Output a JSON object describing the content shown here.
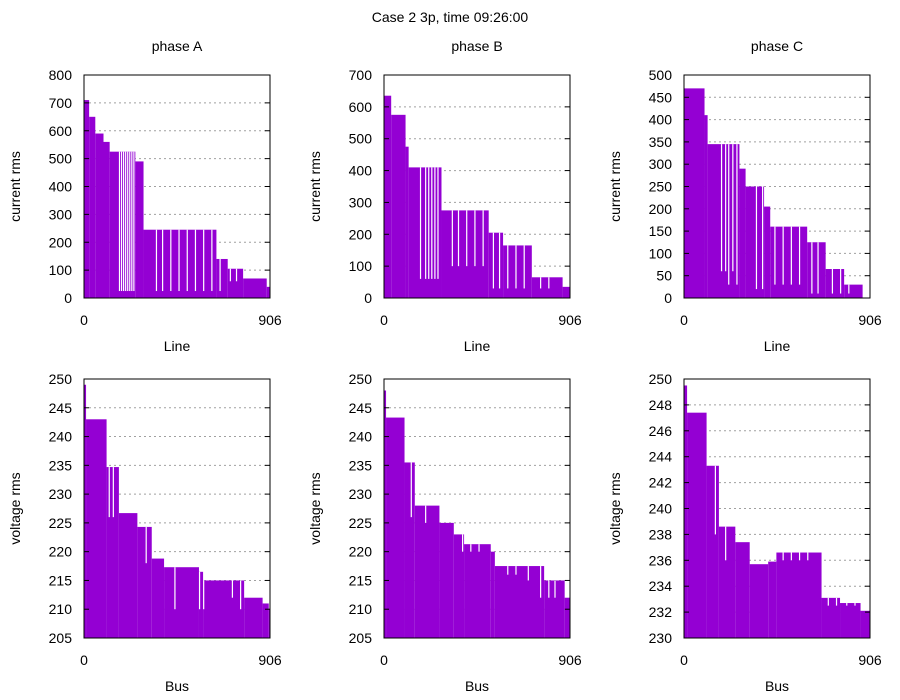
{
  "title": "Case 2 3p, time 09:26:00",
  "colors": {
    "bar": "#9400d3",
    "grid": "#a0a0a0",
    "axis": "#000000"
  },
  "chart_data": [
    {
      "type": "bar",
      "title": "phase A",
      "xlabel": "Line",
      "ylabel": "current rms",
      "xlim": [
        0,
        906
      ],
      "xticks": [
        "0",
        "906"
      ],
      "ylim": [
        0,
        800
      ],
      "yticks": [
        0,
        100,
        200,
        300,
        400,
        500,
        600,
        700,
        800
      ],
      "grid": "horizontal",
      "steps": [
        [
          0,
          710
        ],
        [
          25,
          650
        ],
        [
          55,
          590
        ],
        [
          95,
          560
        ],
        [
          125,
          525
        ],
        [
          250,
          490
        ],
        [
          290,
          245
        ],
        [
          645,
          140
        ],
        [
          700,
          105
        ],
        [
          775,
          70
        ],
        [
          890,
          40
        ]
      ],
      "gaps": [
        [
          170,
          25
        ],
        [
          180,
          25
        ],
        [
          190,
          25
        ],
        [
          200,
          25
        ],
        [
          210,
          25
        ],
        [
          220,
          25
        ],
        [
          230,
          25
        ],
        [
          240,
          25
        ],
        [
          350,
          25
        ],
        [
          380,
          25
        ],
        [
          420,
          25
        ],
        [
          460,
          25
        ],
        [
          500,
          25
        ],
        [
          540,
          25
        ],
        [
          580,
          25
        ],
        [
          620,
          25
        ],
        [
          660,
          25
        ],
        [
          710,
          60
        ],
        [
          740,
          60
        ]
      ]
    },
    {
      "type": "bar",
      "title": "phase B",
      "xlabel": "Line",
      "ylabel": "current rms",
      "xlim": [
        0,
        906
      ],
      "xticks": [
        "0",
        "906"
      ],
      "ylim": [
        0,
        700
      ],
      "yticks": [
        0,
        100,
        200,
        300,
        400,
        500,
        600,
        700
      ],
      "grid": "horizontal",
      "steps": [
        [
          0,
          635
        ],
        [
          35,
          575
        ],
        [
          105,
          475
        ],
        [
          120,
          410
        ],
        [
          280,
          275
        ],
        [
          510,
          205
        ],
        [
          580,
          165
        ],
        [
          720,
          65
        ],
        [
          870,
          35
        ]
      ],
      "gaps": [
        [
          175,
          60
        ],
        [
          200,
          60
        ],
        [
          215,
          60
        ],
        [
          230,
          60
        ],
        [
          245,
          60
        ],
        [
          260,
          60
        ],
        [
          330,
          100
        ],
        [
          360,
          100
        ],
        [
          400,
          100
        ],
        [
          440,
          100
        ],
        [
          480,
          100
        ],
        [
          530,
          30
        ],
        [
          560,
          30
        ],
        [
          600,
          30
        ],
        [
          640,
          30
        ],
        [
          680,
          30
        ],
        [
          760,
          30
        ],
        [
          800,
          30
        ]
      ]
    },
    {
      "type": "bar",
      "title": "phase C",
      "xlabel": "Line",
      "ylabel": "current rms",
      "xlim": [
        0,
        906
      ],
      "xticks": [
        "0",
        "906"
      ],
      "ylim": [
        0,
        500
      ],
      "yticks": [
        0,
        50,
        100,
        150,
        200,
        250,
        300,
        350,
        400,
        450,
        500
      ],
      "grid": "horizontal",
      "steps": [
        [
          0,
          470
        ],
        [
          100,
          410
        ],
        [
          115,
          345
        ],
        [
          270,
          290
        ],
        [
          300,
          250
        ],
        [
          390,
          205
        ],
        [
          420,
          160
        ],
        [
          600,
          125
        ],
        [
          690,
          65
        ],
        [
          780,
          30
        ],
        [
          870,
          0
        ]
      ],
      "gaps": [
        [
          180,
          60
        ],
        [
          200,
          60
        ],
        [
          215,
          30
        ],
        [
          235,
          60
        ],
        [
          255,
          30
        ],
        [
          350,
          20
        ],
        [
          380,
          20
        ],
        [
          440,
          30
        ],
        [
          480,
          30
        ],
        [
          520,
          30
        ],
        [
          560,
          30
        ],
        [
          620,
          10
        ],
        [
          650,
          10
        ],
        [
          720,
          10
        ],
        [
          760,
          10
        ],
        [
          800,
          10
        ]
      ]
    },
    {
      "type": "bar",
      "title": "",
      "xlabel": "Bus",
      "ylabel": "voltage rms",
      "xlim": [
        0,
        906
      ],
      "xticks": [
        "0",
        "906"
      ],
      "ylim": [
        205,
        250
      ],
      "yticks": [
        205,
        210,
        215,
        220,
        225,
        230,
        235,
        240,
        245,
        250
      ],
      "grid": "horizontal",
      "steps": [
        [
          0,
          249
        ],
        [
          10,
          243
        ],
        [
          110,
          234.7
        ],
        [
          170,
          226.7
        ],
        [
          260,
          224.3
        ],
        [
          330,
          218.8
        ],
        [
          390,
          217.3
        ],
        [
          560,
          216.5
        ],
        [
          580,
          215
        ],
        [
          780,
          212
        ],
        [
          870,
          211
        ],
        [
          900,
          210
        ]
      ],
      "gaps": [
        [
          120,
          226
        ],
        [
          140,
          226
        ],
        [
          300,
          218
        ],
        [
          440,
          210
        ],
        [
          560,
          210
        ],
        [
          580,
          210
        ],
        [
          720,
          212
        ],
        [
          760,
          210
        ]
      ]
    },
    {
      "type": "bar",
      "title": "",
      "xlabel": "Bus",
      "ylabel": "voltage rms",
      "xlim": [
        0,
        906
      ],
      "xticks": [
        "0",
        "906"
      ],
      "ylim": [
        205,
        250
      ],
      "yticks": [
        205,
        210,
        215,
        220,
        225,
        230,
        235,
        240,
        245,
        250
      ],
      "grid": "horizontal",
      "steps": [
        [
          0,
          248
        ],
        [
          10,
          243.3
        ],
        [
          100,
          235.5
        ],
        [
          150,
          228
        ],
        [
          270,
          225
        ],
        [
          340,
          223
        ],
        [
          390,
          221.3
        ],
        [
          520,
          220
        ],
        [
          540,
          217.5
        ],
        [
          780,
          215
        ],
        [
          880,
          212
        ]
      ],
      "gaps": [
        [
          130,
          226
        ],
        [
          200,
          225
        ],
        [
          380,
          220
        ],
        [
          420,
          220
        ],
        [
          460,
          220
        ],
        [
          600,
          216
        ],
        [
          640,
          216
        ],
        [
          700,
          215
        ],
        [
          760,
          212
        ],
        [
          800,
          212
        ],
        [
          830,
          212
        ]
      ]
    },
    {
      "type": "bar",
      "title": "",
      "xlabel": "Bus",
      "ylabel": "voltage rms",
      "xlim": [
        0,
        906
      ],
      "xticks": [
        "0",
        "906"
      ],
      "ylim": [
        230,
        250
      ],
      "yticks": [
        230,
        232,
        234,
        236,
        238,
        240,
        242,
        244,
        246,
        248,
        250
      ],
      "grid": "horizontal",
      "steps": [
        [
          0,
          249.5
        ],
        [
          15,
          247.4
        ],
        [
          110,
          243.3
        ],
        [
          170,
          238.6
        ],
        [
          250,
          237.4
        ],
        [
          320,
          235.7
        ],
        [
          410,
          235.9
        ],
        [
          450,
          236.6
        ],
        [
          670,
          233.1
        ],
        [
          760,
          232.7
        ],
        [
          860,
          232.1
        ]
      ],
      "gaps": [
        [
          150,
          238
        ],
        [
          200,
          236
        ],
        [
          480,
          236
        ],
        [
          520,
          236
        ],
        [
          560,
          236
        ],
        [
          600,
          236
        ],
        [
          700,
          232.5
        ],
        [
          740,
          232.5
        ],
        [
          790,
          232.5
        ],
        [
          830,
          232.5
        ]
      ]
    }
  ]
}
